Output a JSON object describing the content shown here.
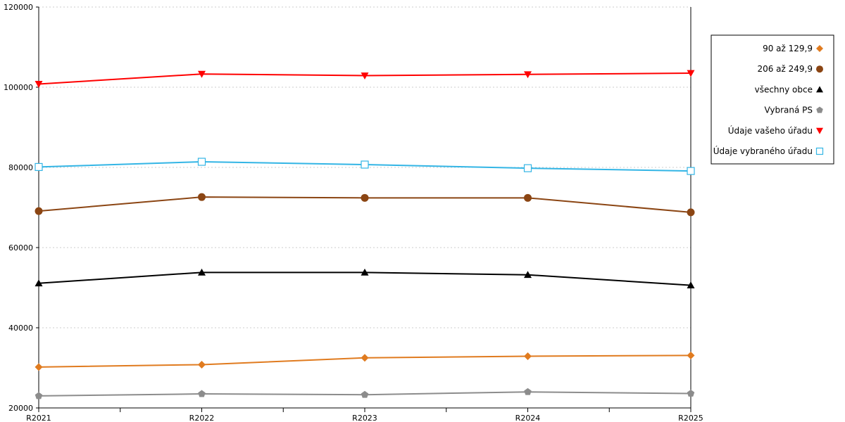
{
  "chart_data": {
    "type": "line",
    "categories": [
      "R2021",
      "R2022",
      "R2023",
      "R2024",
      "R2025"
    ],
    "ylim": [
      20000,
      120000
    ],
    "yticks": [
      "20000",
      "40000",
      "60000",
      "80000",
      "100000",
      "120000"
    ],
    "grid": true,
    "legend_position": "right",
    "series": [
      {
        "name": "90 až 129,9",
        "color": "#E07B1F",
        "marker": "diamond",
        "values": [
          30200,
          30800,
          32500,
          32900,
          33100
        ]
      },
      {
        "name": "206 až 249,9",
        "color": "#8B4513",
        "marker": "circle",
        "values": [
          69100,
          72600,
          72400,
          72400,
          68800
        ]
      },
      {
        "name": "všechny obce",
        "color": "#000000",
        "marker": "triangle-up",
        "values": [
          51100,
          53800,
          53800,
          53200,
          50600
        ]
      },
      {
        "name": "Vybraná PS",
        "color": "#8C8C8C",
        "marker": "pentagon",
        "values": [
          23000,
          23500,
          23300,
          24000,
          23600
        ]
      },
      {
        "name": "Údaje vašeho úřadu",
        "color": "#FF0000",
        "marker": "triangle-down",
        "values": [
          100800,
          103300,
          102900,
          103200,
          103500
        ]
      },
      {
        "name": "Údaje vybraného úřadu",
        "color": "#33B5E5",
        "marker": "square-open",
        "values": [
          80100,
          81400,
          80700,
          79800,
          79100
        ]
      }
    ]
  }
}
